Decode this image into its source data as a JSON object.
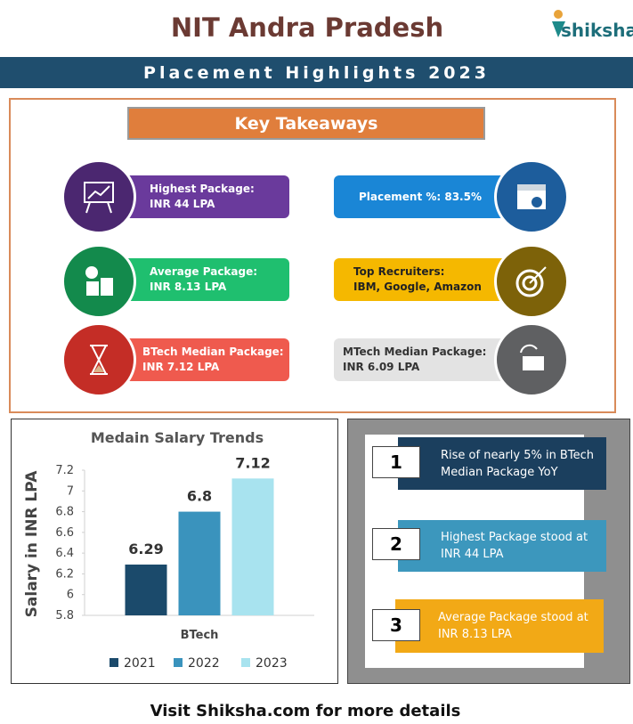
{
  "header": {
    "title": "NIT Andra Pradesh",
    "logo": "shiksha",
    "subtitle": "Placement Highlights 2023"
  },
  "takeaways": {
    "title": "Key Takeaways",
    "items": [
      {
        "label": "Highest Package:",
        "value": "INR 44 LPA"
      },
      {
        "label": "Placement %: 83.5%"
      },
      {
        "label": "Average Package:",
        "value": "INR 8.13  LPA"
      },
      {
        "label": "Top Recruiters:",
        "value": "IBM, Google, Amazon"
      },
      {
        "label": "BTech Median Package:",
        "value": "INR 7.12  LPA"
      },
      {
        "label": "MTech Median Package:",
        "value": "INR 6.09  LPA"
      }
    ]
  },
  "chart_data": {
    "type": "bar",
    "title": "Medain Salary Trends",
    "y_label": "Salary in INR LPA",
    "categories": [
      "BTech"
    ],
    "series": [
      {
        "name": "2021",
        "color": "#1b4a6b",
        "values": [
          6.29
        ]
      },
      {
        "name": "2022",
        "color": "#3a93bd",
        "values": [
          6.8
        ]
      },
      {
        "name": "2023",
        "color": "#a8e3ef",
        "values": [
          7.12
        ]
      }
    ],
    "ylim": [
      5.8,
      7.2
    ],
    "yticks": [
      5.8,
      6,
      6.2,
      6.4,
      6.6,
      6.8,
      7,
      7.2
    ],
    "grid": false,
    "legend": "bottom"
  },
  "highlights": [
    {
      "number": "1",
      "text": "Rise of nearly 5% in BTech Median Package YoY"
    },
    {
      "number": "2",
      "text": "Highest Package stood at INR 44 LPA"
    },
    {
      "number": "3",
      "text": "Average Package stood at INR 8.13 LPA"
    }
  ],
  "footer": "Visit Shiksha.com for more details"
}
